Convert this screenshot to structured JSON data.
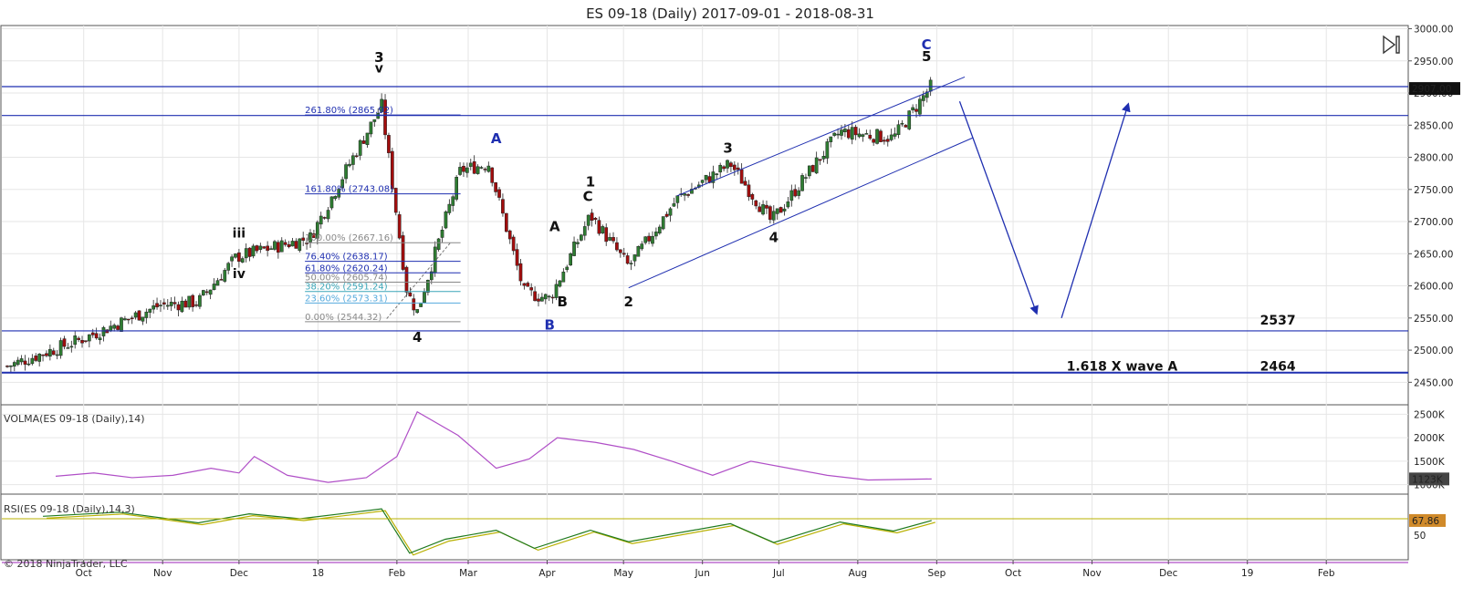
{
  "title": "ES 09-18 (Daily)  2017-09-01 - 2018-08-31",
  "copyright": "© 2018 NinjaTrader, LLC",
  "colors": {
    "up": "#2e7d32",
    "down": "#a30d0d",
    "wave_blue": "#1f2fb0",
    "volma": "#b04fc7",
    "rsi": "#1f7a1f",
    "rsi_signal": "#b8b000",
    "grid": "#e6e6e6"
  },
  "chart_data": [
    {
      "type": "candlestick",
      "title": "ES 09-18 (Daily)  2017-09-01 - 2018-08-31",
      "ylim": [
        2415,
        3005
      ],
      "yticks": [
        2450,
        2500,
        2550,
        2600,
        2650,
        2700,
        2750,
        2800,
        2850,
        2900,
        2950,
        3000
      ],
      "ytick_labels": [
        "2450.00",
        "2500.00",
        "2550.00",
        "2600.00",
        "2650.00",
        "2700.00",
        "2750.00",
        "2800.00",
        "2850.00",
        "2900.00",
        "2950.00",
        "3000.00"
      ],
      "x_axis_labels": [
        "Oct",
        "Nov",
        "Dec",
        "18",
        "Feb",
        "Mar",
        "Apr",
        "May",
        "Jun",
        "Jul",
        "Aug",
        "Sep",
        "Oct",
        "Nov",
        "Dec",
        "19",
        "Feb"
      ],
      "last_price_label": "2907.00",
      "horizontal_lines": [
        2910,
        2865,
        2530,
        2465
      ],
      "price_path": [
        [
          "2017-09-01",
          2475
        ],
        [
          "2017-09-29",
          2515
        ],
        [
          "2017-10-31",
          2570
        ],
        [
          "2017-11-15",
          2575
        ],
        [
          "2017-11-30",
          2645
        ],
        [
          "2017-12-29",
          2675
        ],
        [
          "2018-01-12",
          2780
        ],
        [
          "2018-01-26",
          2880
        ],
        [
          "2018-02-05",
          2590
        ],
        [
          "2018-02-09",
          2560
        ],
        [
          "2018-02-26",
          2780
        ],
        [
          "2018-03-09",
          2790
        ],
        [
          "2018-03-23",
          2590
        ],
        [
          "2018-04-02",
          2580
        ],
        [
          "2018-04-18",
          2710
        ],
        [
          "2018-05-03",
          2630
        ],
        [
          "2018-05-22",
          2735
        ],
        [
          "2018-06-12",
          2790
        ],
        [
          "2018-06-28",
          2700
        ],
        [
          "2018-07-25",
          2840
        ],
        [
          "2018-08-15",
          2830
        ],
        [
          "2018-08-30",
          2912
        ]
      ],
      "wave_labels": [
        {
          "text": "3",
          "date": "2018-01-25",
          "price": 2948,
          "color": "black"
        },
        {
          "text": "v",
          "date": "2018-01-25",
          "price": 2932,
          "color": "black"
        },
        {
          "text": "iii",
          "date": "2017-12-01",
          "price": 2675,
          "color": "black"
        },
        {
          "text": "iv",
          "date": "2017-12-01",
          "price": 2612,
          "color": "black"
        },
        {
          "text": "4",
          "date": "2018-02-09",
          "price": 2513,
          "color": "black"
        },
        {
          "text": "A",
          "date": "2018-03-12",
          "price": 2822,
          "color": "blue"
        },
        {
          "text": "B",
          "date": "2018-04-02",
          "price": 2532,
          "color": "blue"
        },
        {
          "text": "A",
          "date": "2018-04-04",
          "price": 2685,
          "color": "black"
        },
        {
          "text": "B",
          "date": "2018-04-07",
          "price": 2568,
          "color": "black"
        },
        {
          "text": "1",
          "date": "2018-04-18",
          "price": 2755,
          "color": "black"
        },
        {
          "text": "C",
          "date": "2018-04-17",
          "price": 2732,
          "color": "black"
        },
        {
          "text": "2",
          "date": "2018-05-03",
          "price": 2568,
          "color": "black"
        },
        {
          "text": "3",
          "date": "2018-06-11",
          "price": 2807,
          "color": "black"
        },
        {
          "text": "4",
          "date": "2018-06-29",
          "price": 2668,
          "color": "black"
        },
        {
          "text": "C",
          "date": "2018-08-28",
          "price": 2968,
          "color": "blue"
        },
        {
          "text": "5",
          "date": "2018-08-28",
          "price": 2950,
          "color": "black"
        }
      ],
      "fibonacci_labels": [
        "261.80% (2865.92)",
        "161.80% (2743.08)",
        "100.00% (2667.16)",
        "76.40% (2638.17)",
        "61.80% (2620.24)",
        "50.00% (2605.74)",
        "38.20% (2591.24)",
        "23.60% (2573.31)",
        "0.00% (2544.32)"
      ],
      "fibonacci_prices": [
        2865.92,
        2743.08,
        2667.16,
        2638.17,
        2620.24,
        2605.74,
        2591.24,
        2573.31,
        2544.32
      ],
      "annotations": [
        {
          "text": "2537",
          "date": "2019-01-06",
          "price": 2540
        },
        {
          "text": "1.618 X wave A",
          "date": "2018-10-22",
          "price": 2468
        },
        {
          "text": "2464",
          "date": "2019-01-06",
          "price": 2468
        }
      ]
    },
    {
      "type": "line",
      "title": "VOLMA(ES 09-18 (Daily),14)",
      "ylim": [
        800,
        2700
      ],
      "yticks": [
        1000,
        1500,
        2000,
        2500
      ],
      "ytick_labels": [
        "1000K",
        "1500K",
        "2000K",
        "2500K"
      ],
      "last_value_label": "1123K",
      "series": [
        [
          "2017-09-20",
          1180
        ],
        [
          "2017-10-05",
          1250
        ],
        [
          "2017-10-20",
          1150
        ],
        [
          "2017-11-05",
          1200
        ],
        [
          "2017-11-20",
          1350
        ],
        [
          "2017-12-01",
          1250
        ],
        [
          "2017-12-07",
          1600
        ],
        [
          "2017-12-20",
          1200
        ],
        [
          "2018-01-05",
          1050
        ],
        [
          "2018-01-20",
          1150
        ],
        [
          "2018-02-01",
          1600
        ],
        [
          "2018-02-09",
          2550
        ],
        [
          "2018-02-25",
          2050
        ],
        [
          "2018-03-12",
          1350
        ],
        [
          "2018-03-25",
          1550
        ],
        [
          "2018-04-05",
          2000
        ],
        [
          "2018-04-20",
          1900
        ],
        [
          "2018-05-05",
          1750
        ],
        [
          "2018-05-20",
          1500
        ],
        [
          "2018-06-05",
          1200
        ],
        [
          "2018-06-20",
          1500
        ],
        [
          "2018-07-05",
          1350
        ],
        [
          "2018-07-20",
          1200
        ],
        [
          "2018-08-05",
          1100
        ],
        [
          "2018-08-30",
          1123
        ]
      ]
    },
    {
      "type": "line",
      "title": "RSI(ES 09-18 (Daily),14,3)",
      "ylim": [
        20,
        100
      ],
      "yticks": [
        50
      ],
      "ytick_labels": [
        "50"
      ],
      "last_value_label": "67.86",
      "reference_levels": [
        70,
        30
      ],
      "series": [
        [
          "2017-09-15",
          73
        ],
        [
          "2017-10-15",
          78
        ],
        [
          "2017-11-15",
          65
        ],
        [
          "2017-12-05",
          76
        ],
        [
          "2017-12-25",
          70
        ],
        [
          "2018-01-26",
          82
        ],
        [
          "2018-02-06",
          28
        ],
        [
          "2018-02-20",
          45
        ],
        [
          "2018-03-12",
          56
        ],
        [
          "2018-03-27",
          34
        ],
        [
          "2018-04-18",
          56
        ],
        [
          "2018-05-03",
          42
        ],
        [
          "2018-06-12",
          64
        ],
        [
          "2018-06-29",
          41
        ],
        [
          "2018-07-25",
          66
        ],
        [
          "2018-08-15",
          55
        ],
        [
          "2018-08-30",
          67.86
        ]
      ]
    }
  ]
}
